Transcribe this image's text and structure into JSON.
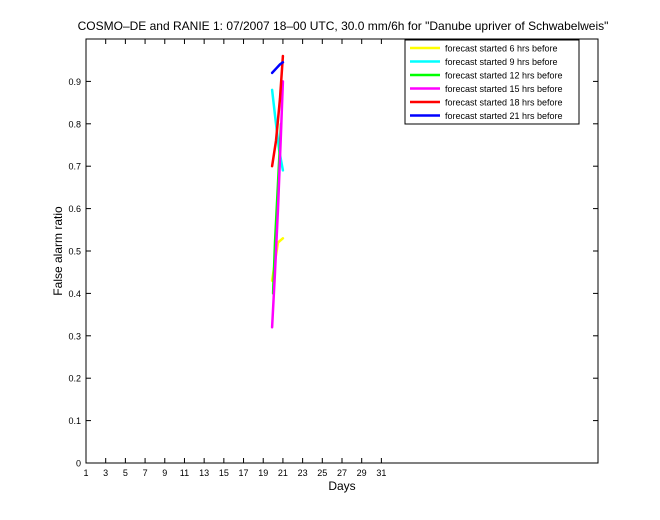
{
  "chart_data": {
    "type": "line",
    "title": "COSMO–DE and RANIE 1: 07/2007 18–00 UTC, 30.0 mm/6h for \"Danube upriver of Schwabelweis\"",
    "xlabel": "Days",
    "ylabel": "False alarm ratio",
    "xlim": [
      1,
      53
    ],
    "ylim": [
      0,
      1
    ],
    "xticks": [
      "1",
      "3",
      "5",
      "7",
      "9",
      "11",
      "13",
      "15",
      "17",
      "19",
      "21",
      "23",
      "25",
      "27",
      "29",
      "31"
    ],
    "yticks": [
      "0",
      "0.1",
      "0.2",
      "0.3",
      "0.4",
      "0.5",
      "0.6",
      "0.7",
      "0.8",
      "0.9"
    ],
    "grid": false,
    "legend_position": "top-right",
    "series": [
      {
        "name": "forecast started 6 hrs before",
        "color": "#ffff00",
        "x": [
          19.9,
          20.3,
          20.5,
          21.0
        ],
        "y": [
          0.43,
          0.49,
          0.52,
          0.53
        ]
      },
      {
        "name": "forecast started 9 hrs before",
        "color": "#00ffff",
        "x": [
          19.9,
          20.2,
          20.6,
          21.0
        ],
        "y": [
          0.88,
          0.82,
          0.74,
          0.69
        ]
      },
      {
        "name": "forecast started 12 hrs before",
        "color": "#00ff00",
        "x": [
          20.0,
          20.2,
          20.5,
          20.8
        ],
        "y": [
          0.4,
          0.52,
          0.66,
          0.8
        ]
      },
      {
        "name": "forecast started 15 hrs before",
        "color": "#ff00ff",
        "x": [
          19.9,
          20.2,
          20.5,
          20.8,
          21.0
        ],
        "y": [
          0.32,
          0.45,
          0.6,
          0.78,
          0.9
        ]
      },
      {
        "name": "forecast started 18 hrs before",
        "color": "#ff0000",
        "x": [
          19.9,
          20.3,
          20.7,
          21.0
        ],
        "y": [
          0.7,
          0.76,
          0.86,
          0.96
        ]
      },
      {
        "name": "forecast started 21 hrs before",
        "color": "#0000ff",
        "x": [
          19.9,
          20.3,
          20.7,
          21.0
        ],
        "y": [
          0.92,
          0.93,
          0.94,
          0.945
        ]
      }
    ]
  }
}
